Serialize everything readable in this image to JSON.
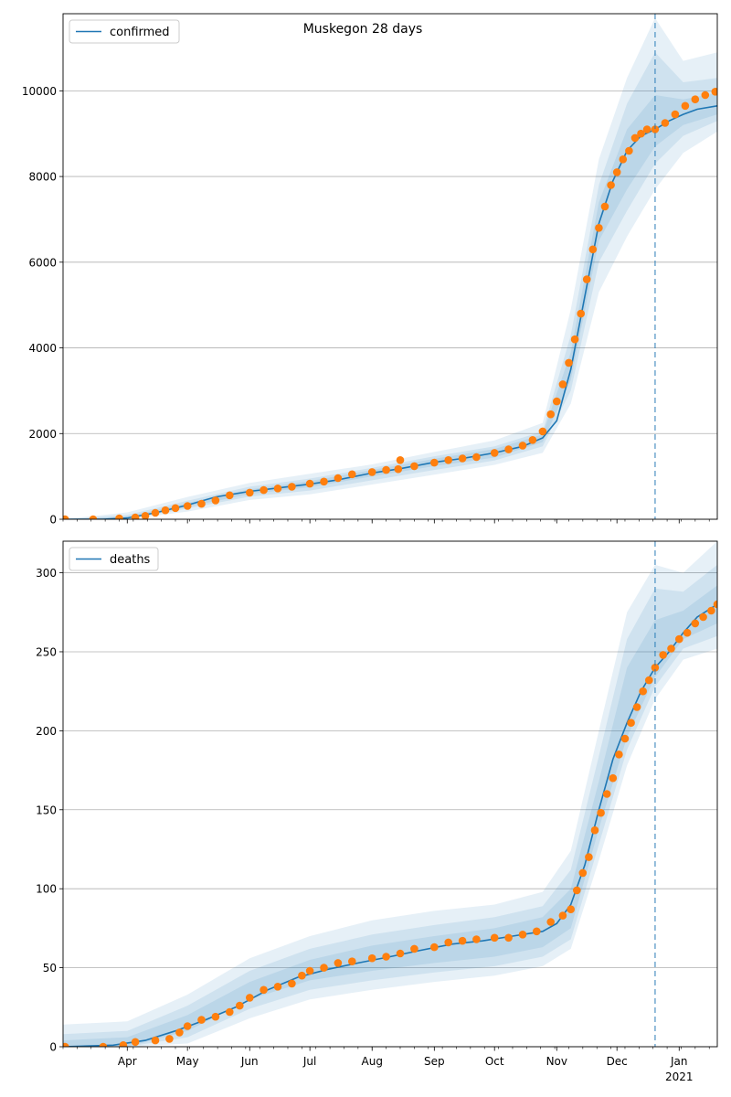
{
  "chart_data": [
    {
      "type": "line",
      "title": "Muskegon 28 days",
      "legend": [
        "confirmed"
      ],
      "legend_position": "top-left",
      "grid": "y",
      "ylim": [
        0,
        11800
      ],
      "x_domain": [
        "2020-02-29",
        "2021-01-20"
      ],
      "forecast_start": "2020-12-20",
      "y_ticks": [
        0,
        2000,
        4000,
        6000,
        8000,
        10000
      ],
      "x_ticks": [
        {
          "date": "2020-04-01",
          "label": "Apr"
        },
        {
          "date": "2020-05-01",
          "label": "May"
        },
        {
          "date": "2020-06-01",
          "label": "Jun"
        },
        {
          "date": "2020-07-01",
          "label": "Jul"
        },
        {
          "date": "2020-08-01",
          "label": "Aug"
        },
        {
          "date": "2020-09-01",
          "label": "Sep"
        },
        {
          "date": "2020-10-01",
          "label": "Oct"
        },
        {
          "date": "2020-11-01",
          "label": "Nov"
        },
        {
          "date": "2020-12-01",
          "label": "Dec"
        },
        {
          "date": "2021-01-01",
          "label": "Jan",
          "sublabel": "2021"
        }
      ],
      "series": [
        {
          "name": "confirmed",
          "color": "#1f77b4",
          "x": [
            "2020-02-29",
            "2020-03-20",
            "2020-04-01",
            "2020-04-15",
            "2020-05-01",
            "2020-05-15",
            "2020-06-01",
            "2020-06-15",
            "2020-07-01",
            "2020-07-15",
            "2020-08-01",
            "2020-08-15",
            "2020-09-01",
            "2020-09-15",
            "2020-10-01",
            "2020-10-15",
            "2020-10-25",
            "2020-11-01",
            "2020-11-08",
            "2020-11-15",
            "2020-11-22",
            "2020-11-29",
            "2020-12-06",
            "2020-12-13",
            "2020-12-20",
            "2020-12-27",
            "2021-01-03",
            "2021-01-10",
            "2021-01-20"
          ],
          "y": [
            0,
            0,
            30,
            150,
            330,
            520,
            650,
            730,
            820,
            920,
            1080,
            1180,
            1330,
            1420,
            1550,
            1700,
            1900,
            2300,
            3500,
            5200,
            6900,
            7900,
            8600,
            8950,
            9100,
            9300,
            9450,
            9570,
            9650
          ]
        }
      ],
      "observed": {
        "color": "#ff7f0e",
        "x": [
          "2020-03-01",
          "2020-03-15",
          "2020-03-28",
          "2020-04-05",
          "2020-04-10",
          "2020-04-15",
          "2020-04-20",
          "2020-04-25",
          "2020-05-01",
          "2020-05-08",
          "2020-05-15",
          "2020-05-22",
          "2020-06-01",
          "2020-06-08",
          "2020-06-15",
          "2020-06-22",
          "2020-07-01",
          "2020-07-08",
          "2020-07-15",
          "2020-07-22",
          "2020-08-01",
          "2020-08-08",
          "2020-08-14",
          "2020-08-15",
          "2020-08-22",
          "2020-09-01",
          "2020-09-08",
          "2020-09-15",
          "2020-09-22",
          "2020-10-01",
          "2020-10-08",
          "2020-10-15",
          "2020-10-20",
          "2020-10-25",
          "2020-10-29",
          "2020-11-01",
          "2020-11-04",
          "2020-11-07",
          "2020-11-10",
          "2020-11-13",
          "2020-11-16",
          "2020-11-19",
          "2020-11-22",
          "2020-11-25",
          "2020-11-28",
          "2020-12-01",
          "2020-12-04",
          "2020-12-07",
          "2020-12-10",
          "2020-12-13",
          "2020-12-16",
          "2020-12-20",
          "2020-12-25",
          "2020-12-30",
          "2021-01-04",
          "2021-01-09",
          "2021-01-14",
          "2021-01-19"
        ],
        "y": [
          0,
          0,
          20,
          40,
          80,
          150,
          210,
          260,
          310,
          360,
          440,
          560,
          620,
          680,
          720,
          760,
          830,
          880,
          960,
          1050,
          1100,
          1150,
          1170,
          1380,
          1240,
          1320,
          1380,
          1420,
          1450,
          1550,
          1630,
          1720,
          1850,
          2050,
          2450,
          2750,
          3150,
          3650,
          4200,
          4800,
          5600,
          6300,
          6800,
          7300,
          7800,
          8100,
          8400,
          8600,
          8900,
          9000,
          9100,
          9100,
          9250,
          9450,
          9650,
          9800,
          9900,
          9980
        ]
      },
      "bands": [
        {
          "x": [
            "2020-02-29",
            "2020-04-01",
            "2020-05-01",
            "2020-06-01",
            "2020-07-01",
            "2020-08-01",
            "2020-09-01",
            "2020-10-01",
            "2020-10-25",
            "2020-11-08",
            "2020-11-22",
            "2020-12-06",
            "2020-12-20",
            "2021-01-03",
            "2021-01-20"
          ],
          "lo": [
            0,
            0,
            180,
            450,
            580,
            810,
            1040,
            1270,
            1550,
            2700,
            5300,
            6600,
            7700,
            8550,
            9050
          ],
          "hi": [
            0,
            160,
            520,
            850,
            1060,
            1280,
            1570,
            1840,
            2250,
            4900,
            8400,
            10300,
            11700,
            10700,
            10900
          ]
        },
        {
          "x": [
            "2020-02-29",
            "2020-04-01",
            "2020-05-01",
            "2020-06-01",
            "2020-07-01",
            "2020-08-01",
            "2020-09-01",
            "2020-10-01",
            "2020-10-25",
            "2020-11-08",
            "2020-11-22",
            "2020-12-06",
            "2020-12-20",
            "2021-01-03",
            "2021-01-20"
          ],
          "lo": [
            0,
            0,
            250,
            530,
            670,
            910,
            1150,
            1370,
            1700,
            3000,
            6000,
            7200,
            8300,
            8950,
            9300
          ],
          "hi": [
            0,
            100,
            430,
            760,
            950,
            1200,
            1470,
            1700,
            2050,
            4300,
            7800,
            9700,
            10900,
            10200,
            10300
          ]
        },
        {
          "x": [
            "2020-02-29",
            "2020-04-01",
            "2020-05-01",
            "2020-06-01",
            "2020-07-01",
            "2020-08-01",
            "2020-09-01",
            "2020-10-01",
            "2020-10-25",
            "2020-11-08",
            "2020-11-22",
            "2020-12-06",
            "2020-12-20",
            "2021-01-03",
            "2021-01-20"
          ],
          "lo": [
            0,
            10,
            290,
            590,
            750,
            1000,
            1240,
            1440,
            1800,
            3250,
            6500,
            7700,
            8700,
            9200,
            9450
          ],
          "hi": [
            0,
            60,
            380,
            700,
            890,
            1150,
            1410,
            1640,
            1980,
            3900,
            7400,
            9100,
            9900,
            9800,
            9950
          ]
        }
      ]
    },
    {
      "type": "line",
      "legend": [
        "deaths"
      ],
      "legend_position": "top-left",
      "grid": "y",
      "ylim": [
        0,
        320
      ],
      "x_domain": [
        "2020-02-29",
        "2021-01-20"
      ],
      "forecast_start": "2020-12-20",
      "y_ticks": [
        0,
        50,
        100,
        150,
        200,
        250,
        300
      ],
      "x_ticks": [
        {
          "date": "2020-04-01",
          "label": "Apr"
        },
        {
          "date": "2020-05-01",
          "label": "May"
        },
        {
          "date": "2020-06-01",
          "label": "Jun"
        },
        {
          "date": "2020-07-01",
          "label": "Jul"
        },
        {
          "date": "2020-08-01",
          "label": "Aug"
        },
        {
          "date": "2020-09-01",
          "label": "Sep"
        },
        {
          "date": "2020-10-01",
          "label": "Oct"
        },
        {
          "date": "2020-11-01",
          "label": "Nov"
        },
        {
          "date": "2020-12-01",
          "label": "Dec"
        },
        {
          "date": "2021-01-01",
          "label": "Jan",
          "sublabel": "2021"
        }
      ],
      "series": [
        {
          "name": "deaths",
          "color": "#1f77b4",
          "x": [
            "2020-02-29",
            "2020-03-25",
            "2020-04-10",
            "2020-04-25",
            "2020-05-10",
            "2020-05-25",
            "2020-06-10",
            "2020-06-25",
            "2020-07-10",
            "2020-07-25",
            "2020-08-10",
            "2020-08-25",
            "2020-09-10",
            "2020-09-25",
            "2020-10-10",
            "2020-10-25",
            "2020-11-01",
            "2020-11-08",
            "2020-11-15",
            "2020-11-22",
            "2020-11-29",
            "2020-12-06",
            "2020-12-13",
            "2020-12-20",
            "2020-12-27",
            "2021-01-03",
            "2021-01-10",
            "2021-01-20"
          ],
          "y": [
            0,
            1,
            4,
            10,
            17,
            25,
            36,
            44,
            49,
            53,
            57,
            61,
            65,
            67,
            70,
            73,
            78,
            90,
            115,
            150,
            182,
            205,
            225,
            240,
            250,
            262,
            272,
            280
          ]
        }
      ],
      "observed": {
        "color": "#ff7f0e",
        "x": [
          "2020-03-01",
          "2020-03-20",
          "2020-03-30",
          "2020-04-05",
          "2020-04-15",
          "2020-04-22",
          "2020-04-27",
          "2020-05-01",
          "2020-05-08",
          "2020-05-15",
          "2020-05-22",
          "2020-05-27",
          "2020-06-01",
          "2020-06-08",
          "2020-06-15",
          "2020-06-22",
          "2020-06-27",
          "2020-07-01",
          "2020-07-08",
          "2020-07-15",
          "2020-07-22",
          "2020-08-01",
          "2020-08-08",
          "2020-08-15",
          "2020-08-22",
          "2020-09-01",
          "2020-09-08",
          "2020-09-15",
          "2020-09-22",
          "2020-10-01",
          "2020-10-08",
          "2020-10-15",
          "2020-10-22",
          "2020-10-29",
          "2020-11-04",
          "2020-11-08",
          "2020-11-11",
          "2020-11-14",
          "2020-11-17",
          "2020-11-20",
          "2020-11-23",
          "2020-11-26",
          "2020-11-29",
          "2020-12-02",
          "2020-12-05",
          "2020-12-08",
          "2020-12-11",
          "2020-12-14",
          "2020-12-17",
          "2020-12-20",
          "2020-12-24",
          "2020-12-28",
          "2021-01-01",
          "2021-01-05",
          "2021-01-09",
          "2021-01-13",
          "2021-01-17",
          "2021-01-20"
        ],
        "y": [
          0,
          0,
          1,
          3,
          4,
          5,
          9,
          13,
          17,
          19,
          22,
          26,
          31,
          36,
          38,
          40,
          45,
          48,
          50,
          53,
          54,
          56,
          57,
          59,
          62,
          63,
          66,
          67,
          68,
          69,
          69,
          71,
          73,
          79,
          83,
          87,
          99,
          110,
          120,
          137,
          148,
          160,
          170,
          185,
          195,
          205,
          215,
          225,
          232,
          240,
          248,
          252,
          258,
          262,
          268,
          272,
          276,
          280
        ]
      },
      "bands": [
        {
          "x": [
            "2020-02-29",
            "2020-04-01",
            "2020-05-01",
            "2020-06-01",
            "2020-07-01",
            "2020-08-01",
            "2020-09-01",
            "2020-10-01",
            "2020-10-25",
            "2020-11-08",
            "2020-11-22",
            "2020-12-06",
            "2020-12-20",
            "2021-01-03",
            "2021-01-20"
          ],
          "lo": [
            0,
            0,
            2,
            18,
            30,
            36,
            41,
            45,
            51,
            62,
            118,
            178,
            220,
            245,
            252
          ],
          "hi": [
            14,
            16,
            33,
            56,
            70,
            80,
            86,
            90,
            98,
            124,
            200,
            275,
            305,
            300,
            320
          ]
        },
        {
          "x": [
            "2020-02-29",
            "2020-04-01",
            "2020-05-01",
            "2020-06-01",
            "2020-07-01",
            "2020-08-01",
            "2020-09-01",
            "2020-10-01",
            "2020-10-25",
            "2020-11-08",
            "2020-11-22",
            "2020-12-06",
            "2020-12-20",
            "2021-01-03",
            "2021-01-20"
          ],
          "lo": [
            0,
            0,
            6,
            24,
            36,
            42,
            47,
            51,
            57,
            68,
            128,
            188,
            228,
            252,
            260
          ],
          "hi": [
            8,
            10,
            26,
            48,
            62,
            71,
            77,
            82,
            89,
            112,
            184,
            258,
            290,
            288,
            305
          ]
        },
        {
          "x": [
            "2020-02-29",
            "2020-04-01",
            "2020-05-01",
            "2020-06-01",
            "2020-07-01",
            "2020-08-01",
            "2020-09-01",
            "2020-10-01",
            "2020-10-25",
            "2020-11-08",
            "2020-11-22",
            "2020-12-06",
            "2020-12-20",
            "2021-01-03",
            "2021-01-20"
          ],
          "lo": [
            0,
            0,
            10,
            30,
            42,
            48,
            53,
            57,
            63,
            75,
            138,
            196,
            234,
            258,
            268
          ],
          "hi": [
            4,
            6,
            20,
            41,
            55,
            64,
            70,
            75,
            82,
            100,
            168,
            240,
            270,
            276,
            292
          ]
        }
      ]
    }
  ]
}
